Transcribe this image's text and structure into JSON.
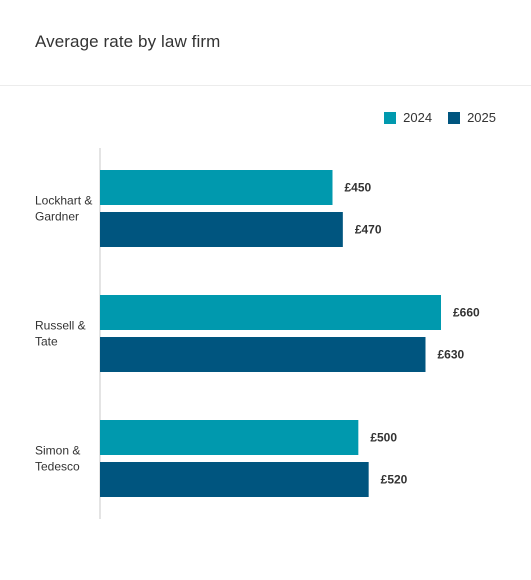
{
  "chart_data": {
    "type": "bar",
    "orientation": "horizontal",
    "title": "Average rate by law firm",
    "categories": [
      [
        "Lockhart &",
        "Gardner"
      ],
      [
        "Russell &",
        "Tate"
      ],
      [
        "Simon &",
        "Tedesco"
      ]
    ],
    "series": [
      {
        "name": "2024",
        "color": "#0099ae",
        "values": [
          450,
          660,
          500
        ],
        "labels": [
          "£450",
          "£660",
          "£500"
        ]
      },
      {
        "name": "2025",
        "color": "#00557f",
        "values": [
          470,
          630,
          520
        ],
        "labels": [
          "£470",
          "£630",
          "£520"
        ]
      }
    ],
    "xlim": [
      0,
      700
    ],
    "grid": false,
    "legend_position": "top-right"
  }
}
